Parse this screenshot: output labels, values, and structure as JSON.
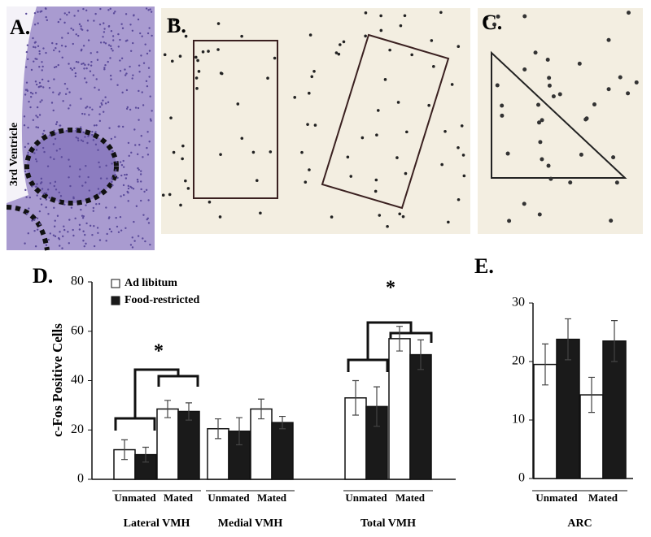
{
  "panels": {
    "a_label": "A.",
    "b_label": "B.",
    "c_label": "C.",
    "ventricle_label": "3rd Ventricle"
  },
  "chart_data": [
    {
      "type": "bar",
      "panel_label": "D.",
      "y_label": "c-Fos Positive Cells",
      "categories": [
        "Unmated",
        "Mated",
        "Unmated",
        "Mated",
        "Unmated",
        "Mated"
      ],
      "group_labels": [
        "Lateral  VMH",
        "Medial VMH",
        "Total VMH"
      ],
      "series": [
        {
          "name": "Ad libitum",
          "color": "#ffffff",
          "values": [
            12,
            28.5,
            20.5,
            28.5,
            33,
            57
          ],
          "errors": [
            4,
            3.5,
            4,
            4,
            7,
            5
          ]
        },
        {
          "name": "Food-restricted",
          "color": "#1a1a1a",
          "values": [
            10,
            27.5,
            19.5,
            23,
            29.5,
            50.5
          ],
          "errors": [
            3,
            3.5,
            5.5,
            2.5,
            8,
            6
          ]
        }
      ],
      "annotations": [
        "*",
        "*"
      ],
      "ylim": [
        0,
        80
      ],
      "yticks": [
        0,
        20,
        40,
        60,
        80
      ],
      "legend": "upper left"
    },
    {
      "type": "bar",
      "panel_label": "E.",
      "categories": [
        "Unmated",
        "Mated"
      ],
      "group_labels": [
        "ARC"
      ],
      "series": [
        {
          "color": "#ffffff",
          "values": [
            19.5,
            14.3
          ],
          "errors": [
            3.5,
            3
          ]
        },
        {
          "color": "#1a1a1a",
          "values": [
            23.8,
            23.5
          ],
          "errors": [
            3.5,
            3.5
          ]
        }
      ],
      "ylim": [
        0,
        30
      ],
      "yticks": [
        0,
        10,
        20,
        30
      ]
    }
  ]
}
